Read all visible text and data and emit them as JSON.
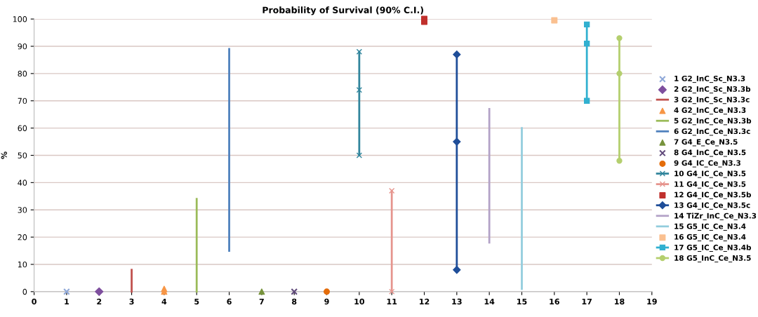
{
  "chart_data": {
    "type": "line",
    "title": "Probability of Survival (90% C.I.)",
    "ylabel": "%",
    "xlim": [
      0,
      19
    ],
    "xticks": [
      0,
      1,
      2,
      3,
      4,
      5,
      6,
      7,
      8,
      9,
      10,
      11,
      12,
      13,
      14,
      15,
      16,
      17,
      18,
      19
    ],
    "ylim": [
      0,
      100
    ],
    "yticks": [
      0,
      10,
      20,
      30,
      40,
      50,
      60,
      70,
      80,
      90,
      100
    ],
    "grid": "y",
    "legend": "right",
    "series": [
      {
        "name": "1 G2_InC_Sc_N3.3",
        "color": "#8fa8d8",
        "type": "scatter",
        "x": [
          1
        ],
        "values": [
          0
        ],
        "marker": "cross"
      },
      {
        "name": "2 G2_InC_Sc_N3.3b",
        "color": "#7e4f9e",
        "type": "scatter",
        "x": [
          2
        ],
        "values": [
          0
        ],
        "marker": "diamond"
      },
      {
        "name": "3 G2_InC_Sc_N3.3c",
        "color": "#c0504d",
        "x": [
          3,
          3,
          3
        ],
        "values": [
          0,
          0,
          8
        ],
        "marker": "none"
      },
      {
        "name": "4 G2_InC_Ce_N3.3",
        "color": "#f79646",
        "type": "scatter",
        "x": [
          4,
          4
        ],
        "values": [
          0,
          1
        ],
        "marker": "triangle"
      },
      {
        "name": "5 G2_InC_Ce_N3.3b",
        "color": "#9bbb59",
        "x": [
          5,
          5,
          5
        ],
        "values": [
          0,
          6,
          34
        ],
        "marker": "none"
      },
      {
        "name": "6 G2_InC_Ce_N3.3c",
        "color": "#4f81bd",
        "x": [
          6,
          6,
          6
        ],
        "values": [
          15,
          62,
          89
        ],
        "marker": "none"
      },
      {
        "name": "7 G4_E_Ce_N3.5",
        "color": "#77933c",
        "type": "scatter",
        "x": [
          7
        ],
        "values": [
          0
        ],
        "marker": "triangle"
      },
      {
        "name": "8 G4_InC_Ce_N3.5",
        "color": "#604a7b",
        "type": "scatter",
        "x": [
          8
        ],
        "values": [
          0
        ],
        "marker": "cross"
      },
      {
        "name": "9 G4_IC_Ce_N3.3",
        "color": "#e46c0a",
        "type": "scatter",
        "x": [
          9
        ],
        "values": [
          0
        ],
        "marker": "circle"
      },
      {
        "name": "10 G4_IC_Ce_N3.5",
        "color": "#31859c",
        "x": [
          10,
          10,
          10
        ],
        "values": [
          50,
          74,
          88
        ],
        "marker": "cross"
      },
      {
        "name": "11 G4_IC_Ce_N3.5",
        "color": "#e6958e",
        "x": [
          11,
          11
        ],
        "values": [
          0,
          37
        ],
        "marker": "cross"
      },
      {
        "name": "12 G4_IC_Ce_N3.5b",
        "color": "#c0302d",
        "type": "scatter",
        "x": [
          12,
          12
        ],
        "values": [
          99,
          100
        ],
        "marker": "square"
      },
      {
        "name": "13 G4_IC_Ce_N3.5c",
        "color": "#1f4e99",
        "x": [
          13,
          13,
          13
        ],
        "values": [
          8,
          55,
          87
        ],
        "marker": "diamond"
      },
      {
        "name": "14 TiZr_InC_Ce_N3.3",
        "color": "#b3a2c7",
        "x": [
          14,
          14,
          14
        ],
        "values": [
          18,
          43,
          67
        ],
        "marker": "none"
      },
      {
        "name": "15 G5_IC_Ce_N3.4",
        "color": "#93cddd",
        "x": [
          15,
          15,
          15
        ],
        "values": [
          1,
          22,
          60
        ],
        "marker": "none"
      },
      {
        "name": "16 G5_IC_Ce_N3.4",
        "color": "#fac090",
        "type": "scatter",
        "x": [
          16
        ],
        "values": [
          99.5
        ],
        "marker": "square"
      },
      {
        "name": "17 G5_IC_Ce_N3.4b",
        "color": "#31b0d0",
        "x": [
          17,
          17,
          17
        ],
        "values": [
          70,
          91,
          98
        ],
        "marker": "square"
      },
      {
        "name": "18 G5_InC_Ce_N3.5",
        "color": "#b4cf6e",
        "x": [
          18,
          18,
          18
        ],
        "values": [
          48,
          80,
          93
        ],
        "marker": "circle"
      }
    ]
  }
}
